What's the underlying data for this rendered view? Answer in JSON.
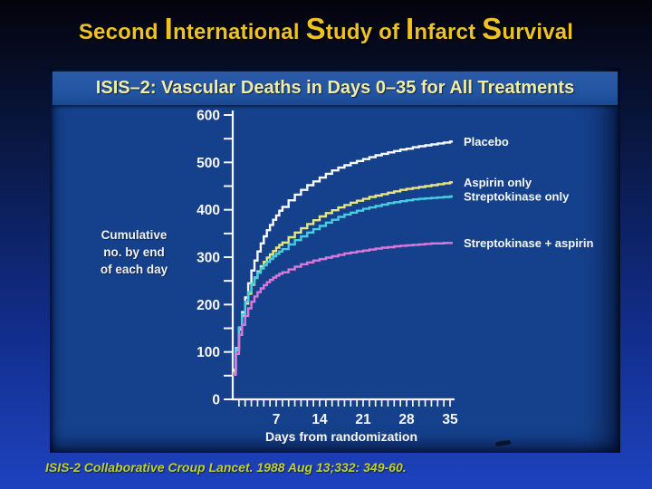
{
  "slide": {
    "title_segments": [
      {
        "t": "Second ",
        "big": false
      },
      {
        "t": "I",
        "big": true
      },
      {
        "t": "nternational ",
        "big": false
      },
      {
        "t": "S",
        "big": true
      },
      {
        "t": "tudy of ",
        "big": false
      },
      {
        "t": "I",
        "big": true
      },
      {
        "t": "nfarct ",
        "big": false
      },
      {
        "t": "S",
        "big": true
      },
      {
        "t": "urvival",
        "big": false
      }
    ],
    "citation": "ISIS-2 Collaborative Croup Lancet. 1988 Aug 13;332: 349-60.",
    "colors": {
      "title_text": "#eec126",
      "background_top": "#03030b",
      "background_bottom": "#1e42c0",
      "citation_text": "#bfd12e"
    }
  },
  "chart_data": {
    "type": "line",
    "style": "cumulative-step",
    "title": "ISIS–2:  Vascular Deaths in Days 0–35 for All Treatments",
    "ylabel_lines": [
      "Cumulative",
      "no. by end",
      "of each day"
    ],
    "xlabel": "Days from randomization",
    "xlim": [
      0,
      35
    ],
    "ylim": [
      0,
      600
    ],
    "x_tick_labels": [
      7,
      14,
      21,
      28,
      35
    ],
    "x_minor_tick_step": 1,
    "y_tick_labels": [
      0,
      100,
      200,
      300,
      400,
      500,
      600
    ],
    "y_minor_tick_step": 50,
    "grid": false,
    "legend_position": "right-of-curve-ends",
    "colors": {
      "plot_background": "#15418c",
      "title_band": "#2253a0",
      "axis": "#f5f5f5",
      "tick_label_text": "#f7f7f7",
      "legend_text": "#f7f7f7"
    },
    "x": [
      0,
      0.5,
      1,
      1.5,
      2,
      2.5,
      3,
      3.5,
      4,
      4.5,
      5,
      5.5,
      6,
      6.5,
      7,
      7.5,
      8,
      9,
      10,
      11,
      12,
      13,
      14,
      15,
      16,
      17,
      18,
      19,
      20,
      21,
      22,
      23,
      24,
      25,
      26,
      27,
      28,
      29,
      30,
      31,
      32,
      33,
      34,
      35
    ],
    "series": [
      {
        "name": "Placebo",
        "color": "#fbfbfb",
        "values": [
          62,
          108,
          150,
          184,
          215,
          245,
          272,
          293,
          312,
          329,
          344,
          357,
          368,
          379,
          388,
          398,
          406,
          420,
          432,
          442,
          452,
          460,
          468,
          476,
          483,
          489,
          494,
          499,
          503,
          507,
          511,
          515,
          518,
          521,
          524,
          527,
          529,
          532,
          534,
          536,
          538,
          540,
          542,
          544
        ]
      },
      {
        "name": "Aspirin only",
        "color": "#e8e680",
        "values": [
          58,
          104,
          148,
          176,
          202,
          223,
          242,
          257,
          270,
          281,
          290,
          299,
          306,
          313,
          320,
          326,
          331,
          342,
          352,
          361,
          370,
          378,
          386,
          393,
          399,
          405,
          410,
          415,
          419,
          423,
          427,
          430,
          433,
          436,
          439,
          442,
          444,
          446,
          448,
          450,
          452,
          454,
          456,
          458
        ]
      },
      {
        "name": "Streptokinase only",
        "color": "#48cde2",
        "values": [
          55,
          106,
          152,
          180,
          206,
          226,
          244,
          256,
          267,
          276,
          283,
          290,
          296,
          302,
          307,
          312,
          317,
          327,
          336,
          344,
          352,
          359,
          366,
          373,
          379,
          385,
          390,
          394,
          398,
          402,
          405,
          408,
          411,
          414,
          416,
          418,
          420,
          422,
          423,
          424,
          425,
          426,
          427,
          428
        ]
      },
      {
        "name": "Streptokinase + aspirin",
        "color": "#dc78da",
        "values": [
          52,
          96,
          136,
          157,
          176,
          192,
          206,
          217,
          226,
          234,
          241,
          247,
          252,
          257,
          261,
          265,
          268,
          274,
          280,
          285,
          289,
          293,
          296,
          299,
          302,
          305,
          308,
          310,
          312,
          314,
          316,
          318,
          320,
          321,
          323,
          324,
          325,
          326,
          327,
          328,
          329,
          329,
          330,
          330
        ]
      }
    ]
  }
}
